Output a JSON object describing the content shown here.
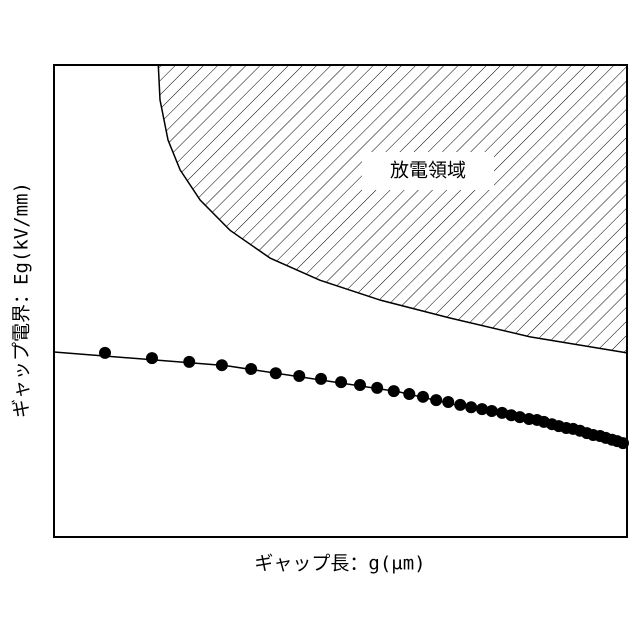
{
  "chart_data": {
    "type": "line",
    "xlabel": "ギャップ長：g(μm)",
    "ylabel": "ギャップ電界：Eg(kV/mm)",
    "annotation": "放電領域",
    "xlim": [
      0,
      100
    ],
    "ylim": [
      0,
      100
    ],
    "region": {
      "color": "#000",
      "x": [
        18.2,
        18.5,
        19.9,
        22.0,
        25.5,
        30.7,
        37.7,
        46.4,
        56.9,
        69.1,
        83.1,
        100
      ],
      "values": [
        100,
        92.6,
        84.1,
        77.8,
        71.4,
        65.0,
        59.1,
        54.4,
        50.2,
        46.4,
        42.4,
        39.0
      ]
    },
    "series": [
      {
        "color": "#000",
        "markers": false,
        "x": [
          0,
          30,
          60,
          100
        ],
        "values": [
          39.2,
          36.3,
          30.8,
          19.7
        ]
      },
      {
        "color": "#000",
        "markers": true,
        "line": false,
        "x": [
          8.9,
          17.1,
          23.6,
          29.3,
          34.4,
          38.7,
          42.8,
          46.6,
          50.1,
          53.4,
          56.4,
          59.3,
          62.0,
          64.4,
          66.7,
          68.8,
          70.9,
          72.8,
          74.7,
          76.4,
          78.2,
          79.8,
          81.3,
          82.9,
          84.3,
          85.5,
          86.9,
          88.1,
          89.4,
          90.6,
          91.8,
          93.0,
          94.1,
          95.3,
          96.3,
          97.4,
          98.3,
          99.3
        ],
        "values": [
          39.0,
          37.9,
          37.1,
          36.4,
          35.6,
          34.7,
          34.1,
          33.5,
          32.8,
          32.2,
          31.6,
          30.9,
          30.3,
          29.7,
          29.0,
          28.6,
          28.0,
          27.5,
          27.1,
          26.7,
          26.3,
          25.8,
          25.4,
          25.0,
          24.8,
          24.4,
          23.9,
          23.5,
          23.1,
          22.9,
          22.5,
          22.0,
          21.6,
          21.4,
          21.0,
          20.6,
          20.3,
          19.9
        ]
      }
    ]
  }
}
